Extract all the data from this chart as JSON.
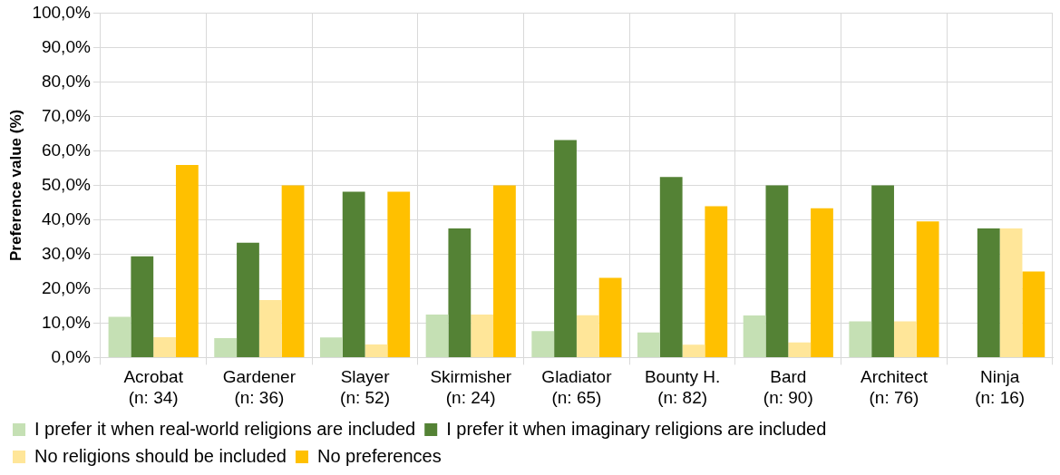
{
  "chart_data": {
    "type": "bar",
    "ylabel": "Preference value (%)",
    "categories": [
      "Acrobat\n(n: 34)",
      "Gardener\n(n: 36)",
      "Slayer\n(n: 52)",
      "Skirmisher\n(n: 24)",
      "Gladiator\n(n: 65)",
      "Bounty H.\n(n: 82)",
      "Bard\n(n: 90)",
      "Architect\n(n: 76)",
      "Ninja\n(n: 16)"
    ],
    "series": [
      {
        "name": "I prefer it when real-world religions are included",
        "color": "#c5e0b4",
        "values": [
          11.8,
          5.6,
          5.8,
          12.5,
          7.7,
          7.3,
          12.2,
          10.5,
          0
        ]
      },
      {
        "name": "I prefer it when imaginary religions are included",
        "color": "#548235",
        "values": [
          29.4,
          33.3,
          48.1,
          37.5,
          63.1,
          52.4,
          50.0,
          50.0,
          37.5
        ]
      },
      {
        "name": "No religions should be included",
        "color": "#ffe699",
        "values": [
          5.9,
          16.7,
          3.8,
          12.5,
          12.3,
          3.7,
          4.4,
          10.5,
          37.5
        ]
      },
      {
        "name": "No preferences",
        "color": "#ffc000",
        "values": [
          55.9,
          50.0,
          48.1,
          50.0,
          23.1,
          43.9,
          43.3,
          39.5,
          25.0
        ]
      }
    ],
    "ylim": [
      0,
      100
    ],
    "yticks": [
      {
        "value": 0,
        "label": "0,0%"
      },
      {
        "value": 10,
        "label": "10,0%"
      },
      {
        "value": 20,
        "label": "20,0%"
      },
      {
        "value": 30,
        "label": "30,0%"
      },
      {
        "value": 40,
        "label": "40,0%"
      },
      {
        "value": 50,
        "label": "50,0%"
      },
      {
        "value": 60,
        "label": "60,0%"
      },
      {
        "value": 70,
        "label": "70,0%"
      },
      {
        "value": 80,
        "label": "80,0%"
      },
      {
        "value": 90,
        "label": "90,0%"
      },
      {
        "value": 100,
        "label": "100,0%"
      }
    ],
    "grid": true,
    "legend": "bottom"
  }
}
